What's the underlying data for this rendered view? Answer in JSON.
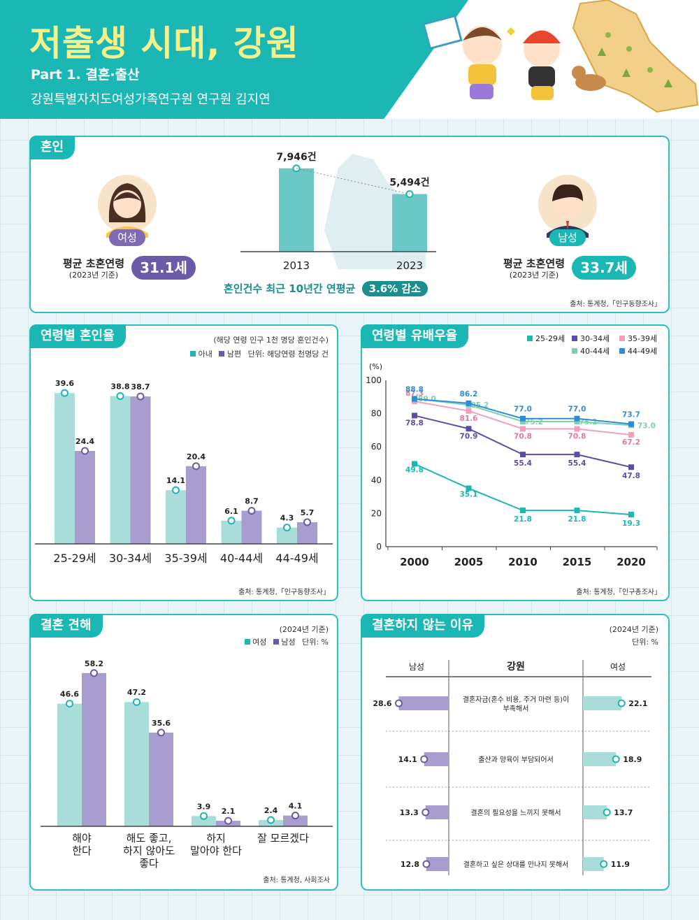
{
  "header": {
    "title": "저출생 시대, 강원",
    "part": "Part 1. 결혼·출산",
    "author": "강원특별자치도여성가족연구원 연구원 김지연"
  },
  "marriage": {
    "tag": "혼인",
    "female": {
      "badge": "여성",
      "label": "평균 초혼연령",
      "basis": "(2023년 기준)",
      "value": "31.1세"
    },
    "male": {
      "badge": "남성",
      "label": "평균 초혼연령",
      "basis": "(2023년 기준)",
      "value": "33.7세"
    },
    "counts": [
      {
        "year": "2013",
        "label": "7,946건"
      },
      {
        "year": "2023",
        "label": "5,494건"
      }
    ],
    "summary_text": "혼인건수 최근 10년간 연평균",
    "summary_highlight": "3.6% 감소",
    "source": "출처: 통계청,「인구동향조사」"
  },
  "age_marriage": {
    "tag": "연령별 혼인율",
    "note": "(해당 연령 인구 1천 명당 혼인건수)",
    "legend_a": "아내",
    "legend_b": "남편",
    "unit": "단위: 해당연령 천명당 건",
    "source": "출처: 통계청,「인구동향조사」"
  },
  "age_spouse": {
    "tag": "연령별 유배우율",
    "ylabel": "(%)",
    "source": "출처: 통계청,「인구총조사」"
  },
  "marriage_view": {
    "tag": "결혼 견해",
    "basis": "(2024년 기준)",
    "legend_a": "여성",
    "legend_b": "남성",
    "unit": "단위: %",
    "source": "출처: 통계청, 사회조사"
  },
  "reasons": {
    "tag": "결혼하지 않는 이유",
    "basis": "(2024년 기준)",
    "unit": "단위: %",
    "col_male": "남성",
    "col_mid": "강원",
    "col_female": "여성"
  },
  "colors": {
    "teal": "#1ab7b5",
    "mint": "#a8ddd9",
    "purple": "#6a5aa8",
    "lavender": "#a99ccf"
  },
  "chart_data": [
    {
      "type": "bar",
      "title": "혼인건수",
      "categories": [
        "2013",
        "2023"
      ],
      "values": [
        7946,
        5494
      ]
    },
    {
      "type": "bar",
      "title": "연령별 혼인율",
      "categories": [
        "25-29세",
        "30-34세",
        "35-39세",
        "40-44세",
        "44-49세"
      ],
      "series": [
        {
          "name": "아내",
          "values": [
            39.6,
            38.8,
            14.1,
            6.1,
            4.3
          ]
        },
        {
          "name": "남편",
          "values": [
            24.4,
            38.7,
            20.4,
            8.7,
            5.7
          ]
        }
      ]
    },
    {
      "type": "line",
      "title": "연령별 유배우율",
      "x": [
        "2000",
        "2005",
        "2010",
        "2015",
        "2020"
      ],
      "ylim": [
        0,
        100
      ],
      "yticks": [
        0,
        20,
        40,
        60,
        80,
        100
      ],
      "series": [
        {
          "name": "25-29세",
          "color": "#1ab7b5",
          "values": [
            49.8,
            35.1,
            21.8,
            21.8,
            19.3
          ]
        },
        {
          "name": "30-34세",
          "color": "#5a4ea6",
          "values": [
            78.8,
            70.9,
            55.4,
            55.4,
            47.8
          ]
        },
        {
          "name": "35-39세",
          "color": "#f0a0b8",
          "values": [
            87.3,
            81.6,
            70.8,
            70.8,
            67.2
          ]
        },
        {
          "name": "40-44세",
          "color": "#7fcfa8",
          "values": [
            89.0,
            85.2,
            75.2,
            75.2,
            73.0
          ]
        },
        {
          "name": "44-49세",
          "color": "#2a8fd8",
          "values": [
            88.8,
            86.2,
            77.0,
            77.0,
            73.7
          ]
        }
      ]
    },
    {
      "type": "bar",
      "title": "결혼 견해",
      "categories": [
        "해야\n한다",
        "해도 좋고,\n하지 않아도\n좋다",
        "하지\n말아야 한다",
        "잘 모르겠다"
      ],
      "series": [
        {
          "name": "여성",
          "values": [
            46.6,
            47.2,
            3.9,
            2.4
          ]
        },
        {
          "name": "남성",
          "values": [
            58.2,
            35.6,
            2.1,
            4.1
          ]
        }
      ]
    },
    {
      "type": "bar",
      "title": "결혼하지 않는 이유",
      "categories": [
        "결혼자금(혼수 비용, 주거 마련 등)이\n부족해서",
        "출산과 양육이 부담되어서",
        "결혼의 필요성을 느끼지 못해서",
        "결혼하고 싶은 상대를 만나지 못해서"
      ],
      "series": [
        {
          "name": "남성",
          "values": [
            28.6,
            14.1,
            13.3,
            12.8
          ]
        },
        {
          "name": "여성",
          "values": [
            22.1,
            18.9,
            13.7,
            11.9
          ]
        }
      ]
    }
  ]
}
